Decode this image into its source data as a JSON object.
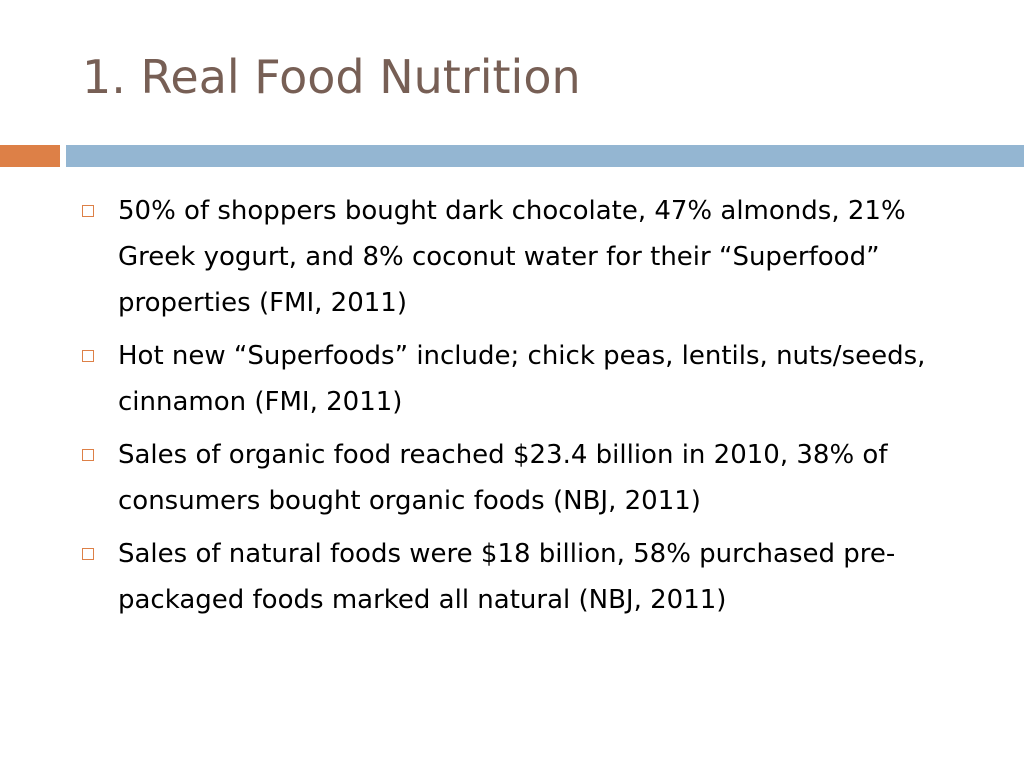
{
  "slide": {
    "title": "1. Real Food Nutrition",
    "colors": {
      "title": "#775f55",
      "accent_bar_left": "#dd8047",
      "accent_bar_right": "#94b6d2",
      "bullet_marker": "#dd8047",
      "text": "#000000"
    },
    "bullet_marker_icon": "hollow-square-icon",
    "bullets": [
      {
        "text": "50% of shoppers bought dark chocolate, 47% almonds, 21% Greek yogurt, and 8% coconut water for their “Superfood” properties (FMI, 2011)"
      },
      {
        "text": "Hot new “Superfoods” include; chick peas, lentils, nuts/seeds, cinnamon (FMI, 2011)"
      },
      {
        "text": "Sales of organic food reached $23.4 billion in 2010, 38% of consumers bought organic foods (NBJ, 2011)"
      },
      {
        "text": "Sales of natural foods were $18 billion, 58% purchased pre-packaged foods marked all natural (NBJ, 2011)"
      }
    ]
  }
}
